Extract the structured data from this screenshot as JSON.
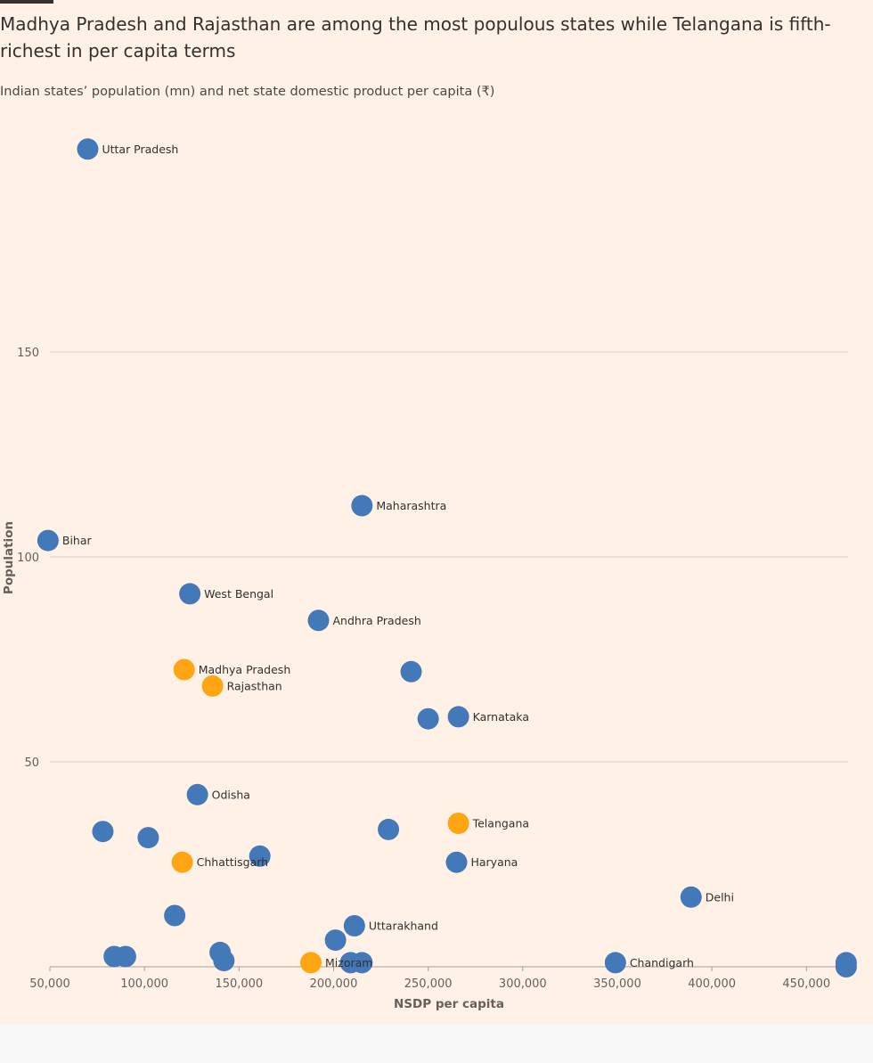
{
  "header": {
    "title": "Madhya Pradesh and Rajasthan are among the most populous states while Telangana is fifth-richest in per capita terms",
    "subtitle": "Indian states’ population (mn) and net state domestic product per capita (₹)"
  },
  "colors": {
    "background": "#fff1e5",
    "default_point": "#4378b9",
    "highlight_point": "#ffa513",
    "gridline": "#d8cdc5",
    "text": "#33302e",
    "tick_text": "#66605c"
  },
  "chart_data": {
    "type": "scatter",
    "title": "Madhya Pradesh and Rajasthan are among the most populous states while Telangana is fifth-richest in per capita terms",
    "subtitle": "Indian states’ population (mn) and net state domestic product per capita (₹)",
    "xlabel": "NSDP per capita",
    "ylabel": "Population",
    "xlim": [
      50000,
      472000
    ],
    "ylim": [
      0,
      200
    ],
    "xticks": [
      50000,
      100000,
      150000,
      200000,
      250000,
      300000,
      350000,
      400000,
      450000
    ],
    "xtick_labels": [
      "50,000",
      "100,000",
      "150,000",
      "200,000",
      "250,000",
      "300,000",
      "350,000",
      "400,000",
      "450,000"
    ],
    "yticks": [
      50,
      100,
      150
    ],
    "ytick_labels": [
      "50",
      "100",
      "150"
    ],
    "grid": "horizontal",
    "legend": "none",
    "points": [
      {
        "label": "Uttar Pradesh",
        "x": 70000,
        "y": 199.5,
        "highlight": false
      },
      {
        "label": "Maharashtra",
        "x": 215000,
        "y": 112.5,
        "highlight": false
      },
      {
        "label": "Bihar",
        "x": 49000,
        "y": 104,
        "highlight": false
      },
      {
        "label": "West Bengal",
        "x": 124000,
        "y": 91,
        "highlight": false
      },
      {
        "label": "Andhra Pradesh",
        "x": 192000,
        "y": 84.5,
        "highlight": false
      },
      {
        "label": "Madhya Pradesh",
        "x": 121000,
        "y": 72.5,
        "highlight": true
      },
      {
        "label": "Rajasthan",
        "x": 136000,
        "y": 68.5,
        "highlight": true
      },
      {
        "label": "",
        "x": 241000,
        "y": 72,
        "highlight": false
      },
      {
        "label": "",
        "x": 250000,
        "y": 60.5,
        "highlight": false
      },
      {
        "label": "Karnataka",
        "x": 266000,
        "y": 61,
        "highlight": false
      },
      {
        "label": "Odisha",
        "x": 128000,
        "y": 42,
        "highlight": false
      },
      {
        "label": "Telangana",
        "x": 266000,
        "y": 35,
        "highlight": true
      },
      {
        "label": "",
        "x": 78000,
        "y": 33,
        "highlight": false
      },
      {
        "label": "",
        "x": 102000,
        "y": 31.5,
        "highlight": false
      },
      {
        "label": "",
        "x": 229000,
        "y": 33.5,
        "highlight": false
      },
      {
        "label": "",
        "x": 161000,
        "y": 27,
        "highlight": false
      },
      {
        "label": "Chhattisgarh",
        "x": 120000,
        "y": 25.5,
        "highlight": true
      },
      {
        "label": "Haryana",
        "x": 265000,
        "y": 25.5,
        "highlight": false
      },
      {
        "label": "Delhi",
        "x": 389000,
        "y": 17,
        "highlight": false
      },
      {
        "label": "",
        "x": 116000,
        "y": 12.5,
        "highlight": false
      },
      {
        "label": "Uttarakhand",
        "x": 211000,
        "y": 10,
        "highlight": false
      },
      {
        "label": "",
        "x": 201000,
        "y": 6.5,
        "highlight": false
      },
      {
        "label": "",
        "x": 84000,
        "y": 2.5,
        "highlight": false
      },
      {
        "label": "",
        "x": 90000,
        "y": 2.5,
        "highlight": false
      },
      {
        "label": "",
        "x": 140000,
        "y": 3.5,
        "highlight": false
      },
      {
        "label": "",
        "x": 142000,
        "y": 1.5,
        "highlight": false
      },
      {
        "label": "Mizoram",
        "x": 188000,
        "y": 1,
        "highlight": true
      },
      {
        "label": "",
        "x": 209000,
        "y": 1,
        "highlight": false
      },
      {
        "label": "",
        "x": 215000,
        "y": 1,
        "highlight": false
      },
      {
        "label": "Chandigarh",
        "x": 349000,
        "y": 1,
        "highlight": false
      },
      {
        "label": "",
        "x": 471000,
        "y": 1,
        "highlight": false
      },
      {
        "label": "",
        "x": 471000,
        "y": 0,
        "highlight": false
      }
    ]
  }
}
